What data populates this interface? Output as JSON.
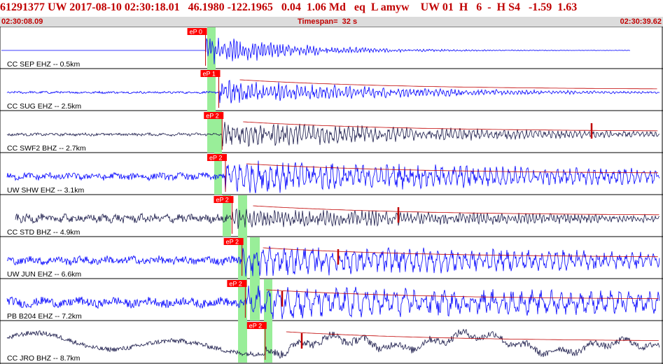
{
  "header": {
    "title": "61291377 UW 2017-08-10 02:30:18.01   46.1980 -122.1965   0.04  1.06 Md   eq  L amyw    UW 01  H   6  -  H S4   -1.59  1.63",
    "start_time": "02:30:08.09",
    "timespan": "Timespan=  32 s",
    "end_time": "02:30:39.62"
  },
  "colors": {
    "title": "#c00000",
    "subbar_bg": "#dcdcdc",
    "trace_blue": "#0000ff",
    "trace_dark": "#1a1a4a",
    "pick_box": "#ff0000",
    "marker": "#c00000",
    "window_green": "#99ee99"
  },
  "channels": [
    {
      "label": "CC SEP EHZ -- 0.5km",
      "pick": "eP 0",
      "color": "blue",
      "onset": 0.31,
      "noise": 0.02,
      "signal": 0.95,
      "freq": 1.6,
      "decay": 0.18,
      "fillin": 0.0
    },
    {
      "label": "CC SUG EHZ -- 2.5km",
      "pick": "eP 1",
      "color": "blue",
      "onset": 0.33,
      "noise": 0.08,
      "signal": 0.8,
      "freq": 1.3,
      "decay": 0.35,
      "fillin": 0.0
    },
    {
      "label": "CC SWF2 BHZ -- 2.7km",
      "pick": "eP 2",
      "color": "dark",
      "onset": 0.335,
      "noise": 0.1,
      "signal": 0.75,
      "freq": 1.1,
      "decay": 0.6,
      "fillin": 0.0
    },
    {
      "label": "UW SHW EHZ -- 3.1km",
      "pick": "eP 2",
      "color": "blue",
      "onset": 0.34,
      "noise": 0.25,
      "signal": 0.9,
      "freq": 0.8,
      "decay": 1.2,
      "fillin": 0.0
    },
    {
      "label": "CC STD BHZ -- 4.9km",
      "pick": "eP 2",
      "color": "dark",
      "onset": 0.35,
      "noise": 0.3,
      "signal": 0.55,
      "freq": 1.4,
      "decay": 1.0,
      "fillin": 0.03
    },
    {
      "label": "UW JUN EHZ -- 6.6km",
      "pick": "eP 2",
      "color": "blue",
      "onset": 0.365,
      "noise": 0.3,
      "signal": 0.85,
      "freq": 0.7,
      "decay": 1.5,
      "fillin": 0.04
    },
    {
      "label": "PB B204 EHZ -- 7.2km",
      "pick": "eP 2",
      "color": "blue",
      "onset": 0.37,
      "noise": 0.35,
      "signal": 0.9,
      "freq": 0.5,
      "decay": 2.0,
      "fillin": 0.04
    },
    {
      "label": "CC JRO BHZ -- 8.7km",
      "pick": "eP 2",
      "color": "dark",
      "onset": 0.4,
      "noise": 0.2,
      "signal": 0.4,
      "freq": 0.15,
      "decay": 3.0,
      "fillin": 0.06
    }
  ]
}
